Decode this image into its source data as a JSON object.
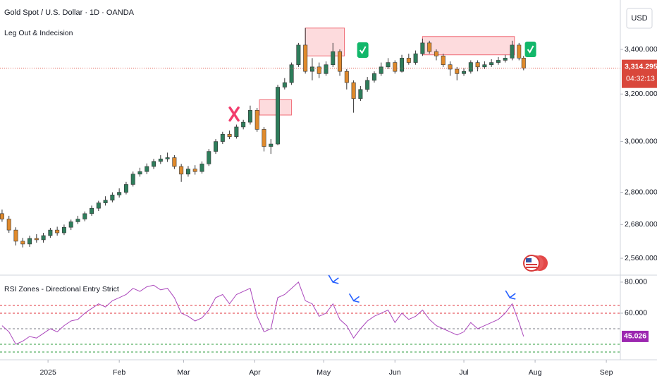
{
  "chart_data": [
    {
      "type": "candlestick",
      "title": "Gold Spot / U.S. Dollar · 1D · OANDA",
      "subtitle": "Leg Out & Indecision",
      "currency": "USD",
      "log_scale": true,
      "up_color": "#2e7d5b",
      "down_color": "#e08a2c",
      "x": [
        -20,
        -17,
        -14,
        -11,
        -8,
        -5,
        -2,
        1,
        4,
        7,
        10,
        13,
        16,
        19,
        22,
        25,
        28,
        31,
        34,
        37,
        40,
        43,
        46,
        49,
        52,
        55,
        58,
        61,
        64,
        67,
        70,
        73,
        76,
        79,
        82,
        85,
        88,
        91,
        94,
        97,
        100,
        103,
        106,
        109,
        112,
        115,
        118,
        121,
        124,
        127,
        130,
        133,
        136,
        139,
        142,
        145,
        148,
        151,
        154,
        157,
        160,
        163,
        166,
        169,
        172,
        175,
        178,
        181,
        184,
        187,
        190,
        193,
        196,
        199,
        202,
        205,
        207
      ],
      "open": [
        2720,
        2700,
        2660,
        2620,
        2610,
        2630,
        2625,
        2640,
        2660,
        2650,
        2670,
        2690,
        2700,
        2720,
        2740,
        2760,
        2770,
        2790,
        2800,
        2830,
        2870,
        2880,
        2900,
        2920,
        2930,
        2935,
        2900,
        2870,
        2890,
        2880,
        2910,
        2960,
        3000,
        3030,
        3020,
        3060,
        3080,
        3130,
        3050,
        2980,
        2990,
        3230,
        3250,
        3330,
        3420,
        3300,
        3320,
        3290,
        3330,
        3390,
        3300,
        3250,
        3180,
        3220,
        3260,
        3290,
        3320,
        3340,
        3300,
        3360,
        3340,
        3380,
        3430,
        3390,
        3370,
        3330,
        3310,
        3290,
        3300,
        3340,
        3320,
        3330,
        3340,
        3350,
        3360,
        3420,
        3360
      ],
      "high": [
        2735,
        2712,
        2670,
        2632,
        2640,
        2645,
        2650,
        2668,
        2672,
        2680,
        2698,
        2712,
        2728,
        2750,
        2768,
        2785,
        2800,
        2815,
        2840,
        2880,
        2895,
        2912,
        2930,
        2945,
        2955,
        2945,
        2910,
        2902,
        2905,
        2920,
        2970,
        3010,
        3040,
        3045,
        3070,
        3090,
        3150,
        3140,
        3060,
        3010,
        3240,
        3270,
        3340,
        3430,
        3500,
        3360,
        3340,
        3345,
        3430,
        3400,
        3310,
        3260,
        3235,
        3275,
        3300,
        3340,
        3360,
        3350,
        3375,
        3380,
        3395,
        3450,
        3440,
        3400,
        3380,
        3345,
        3320,
        3315,
        3350,
        3350,
        3345,
        3355,
        3365,
        3375,
        3440,
        3430,
        3370
      ],
      "low": [
        2690,
        2650,
        2605,
        2598,
        2600,
        2615,
        2615,
        2632,
        2640,
        2642,
        2660,
        2682,
        2692,
        2712,
        2730,
        2750,
        2762,
        2780,
        2792,
        2822,
        2860,
        2870,
        2890,
        2910,
        2918,
        2890,
        2840,
        2860,
        2868,
        2872,
        2902,
        2950,
        2990,
        3010,
        3012,
        3050,
        3070,
        3040,
        2960,
        2950,
        2985,
        3220,
        3240,
        3320,
        3290,
        3260,
        3270,
        3280,
        3320,
        3280,
        3220,
        3120,
        3170,
        3210,
        3250,
        3280,
        3310,
        3290,
        3295,
        3330,
        3330,
        3370,
        3380,
        3350,
        3320,
        3280,
        3260,
        3280,
        3290,
        3300,
        3310,
        3320,
        3330,
        3340,
        3350,
        3350,
        3305
      ],
      "close": [
        2700,
        2660,
        2620,
        2610,
        2630,
        2625,
        2640,
        2660,
        2650,
        2670,
        2690,
        2700,
        2720,
        2740,
        2760,
        2770,
        2790,
        2800,
        2830,
        2870,
        2880,
        2900,
        2920,
        2930,
        2935,
        2900,
        2870,
        2890,
        2880,
        2910,
        2960,
        3000,
        3030,
        3020,
        3060,
        3080,
        3130,
        3050,
        2980,
        2990,
        3230,
        3250,
        3330,
        3420,
        3300,
        3320,
        3290,
        3330,
        3390,
        3300,
        3250,
        3180,
        3220,
        3260,
        3290,
        3320,
        3340,
        3300,
        3360,
        3340,
        3380,
        3430,
        3390,
        3370,
        3330,
        3310,
        3290,
        3300,
        3340,
        3320,
        3330,
        3340,
        3350,
        3360,
        3420,
        3360,
        3314.295
      ],
      "last_price": {
        "value": 3314.295,
        "label": "3,314.295"
      },
      "countdown": "04:32:13",
      "zones": [
        {
          "x": [
            92,
            106
          ],
          "y": [
            3110,
            3175
          ]
        },
        {
          "x": [
            112,
            129
          ],
          "y": [
            3370,
            3500
          ]
        },
        {
          "x": [
            163,
            203
          ],
          "y": [
            3375,
            3460
          ]
        }
      ],
      "signals": [
        {
          "kind": "fail",
          "x": 81,
          "price": 3114
        },
        {
          "kind": "success",
          "x": 137,
          "price": 3397
        },
        {
          "kind": "success",
          "x": 210,
          "price": 3400
        }
      ],
      "xlim": [
        -20.9,
        249.1
      ],
      "ylim": [
        2502,
        3636
      ],
      "yticks": [
        {
          "value": 2560,
          "label": "2,560.000"
        },
        {
          "value": 2680,
          "label": "2,680.000"
        },
        {
          "value": 2800,
          "label": "2,800.000"
        },
        {
          "value": 3000,
          "label": "3,000.000"
        },
        {
          "value": 3200,
          "label": "3,200.000"
        },
        {
          "value": 3400,
          "label": "3,400.000"
        }
      ],
      "xticks": [
        {
          "value": 0,
          "label": "2025"
        },
        {
          "value": 31,
          "label": "Feb"
        },
        {
          "value": 59,
          "label": "Mar"
        },
        {
          "value": 90,
          "label": "Apr"
        },
        {
          "value": 120,
          "label": "May"
        },
        {
          "value": 151,
          "label": "Jun"
        },
        {
          "value": 181,
          "label": "Jul"
        },
        {
          "value": 212,
          "label": "Aug"
        },
        {
          "value": 243,
          "label": "Sep"
        }
      ]
    },
    {
      "type": "line",
      "title": "RSI Zones - Directional Entry Strict",
      "color": "#ab47bc",
      "x": [
        -20,
        -17,
        -14,
        -11,
        -8,
        -5,
        -2,
        1,
        4,
        7,
        10,
        13,
        16,
        19,
        22,
        25,
        28,
        31,
        34,
        37,
        40,
        43,
        46,
        49,
        52,
        55,
        58,
        61,
        64,
        67,
        70,
        73,
        76,
        79,
        82,
        85,
        88,
        91,
        94,
        97,
        100,
        103,
        106,
        109,
        112,
        115,
        118,
        121,
        124,
        127,
        130,
        133,
        136,
        139,
        142,
        145,
        148,
        151,
        154,
        157,
        160,
        163,
        166,
        169,
        172,
        175,
        178,
        181,
        184,
        187,
        190,
        193,
        196,
        199,
        202,
        205,
        207
      ],
      "values": [
        52,
        48,
        40,
        42,
        45,
        44,
        47,
        50,
        48,
        52,
        55,
        56,
        60,
        63,
        66,
        64,
        68,
        70,
        72,
        76,
        74,
        77,
        78,
        75,
        76,
        70,
        60,
        58,
        55,
        57,
        62,
        70,
        72,
        66,
        72,
        74,
        76,
        58,
        48,
        50,
        70,
        72,
        76,
        80,
        68,
        66,
        58,
        60,
        66,
        56,
        52,
        44,
        50,
        55,
        58,
        60,
        62,
        54,
        60,
        56,
        58,
        62,
        56,
        52,
        50,
        48,
        46,
        48,
        54,
        50,
        52,
        54,
        56,
        60,
        66,
        54,
        45.026
      ],
      "levels": [
        {
          "value": 65,
          "color": "#e0303a"
        },
        {
          "value": 60,
          "color": "#e0303a"
        },
        {
          "value": 50,
          "color": "#787b86"
        },
        {
          "value": 40,
          "color": "#2e9e3e"
        },
        {
          "value": 35,
          "color": "#2e9e3e"
        }
      ],
      "arrows": [
        {
          "x": 124,
          "value": 80
        },
        {
          "x": 133,
          "value": 68
        },
        {
          "x": 201,
          "value": 70
        }
      ],
      "xlim": [
        -20.9,
        249.1
      ],
      "ylim": [
        30,
        84.5
      ],
      "yticks": [
        {
          "value": 80,
          "label": "80.000"
        },
        {
          "value": 60,
          "label": "60.000"
        }
      ]
    }
  ]
}
